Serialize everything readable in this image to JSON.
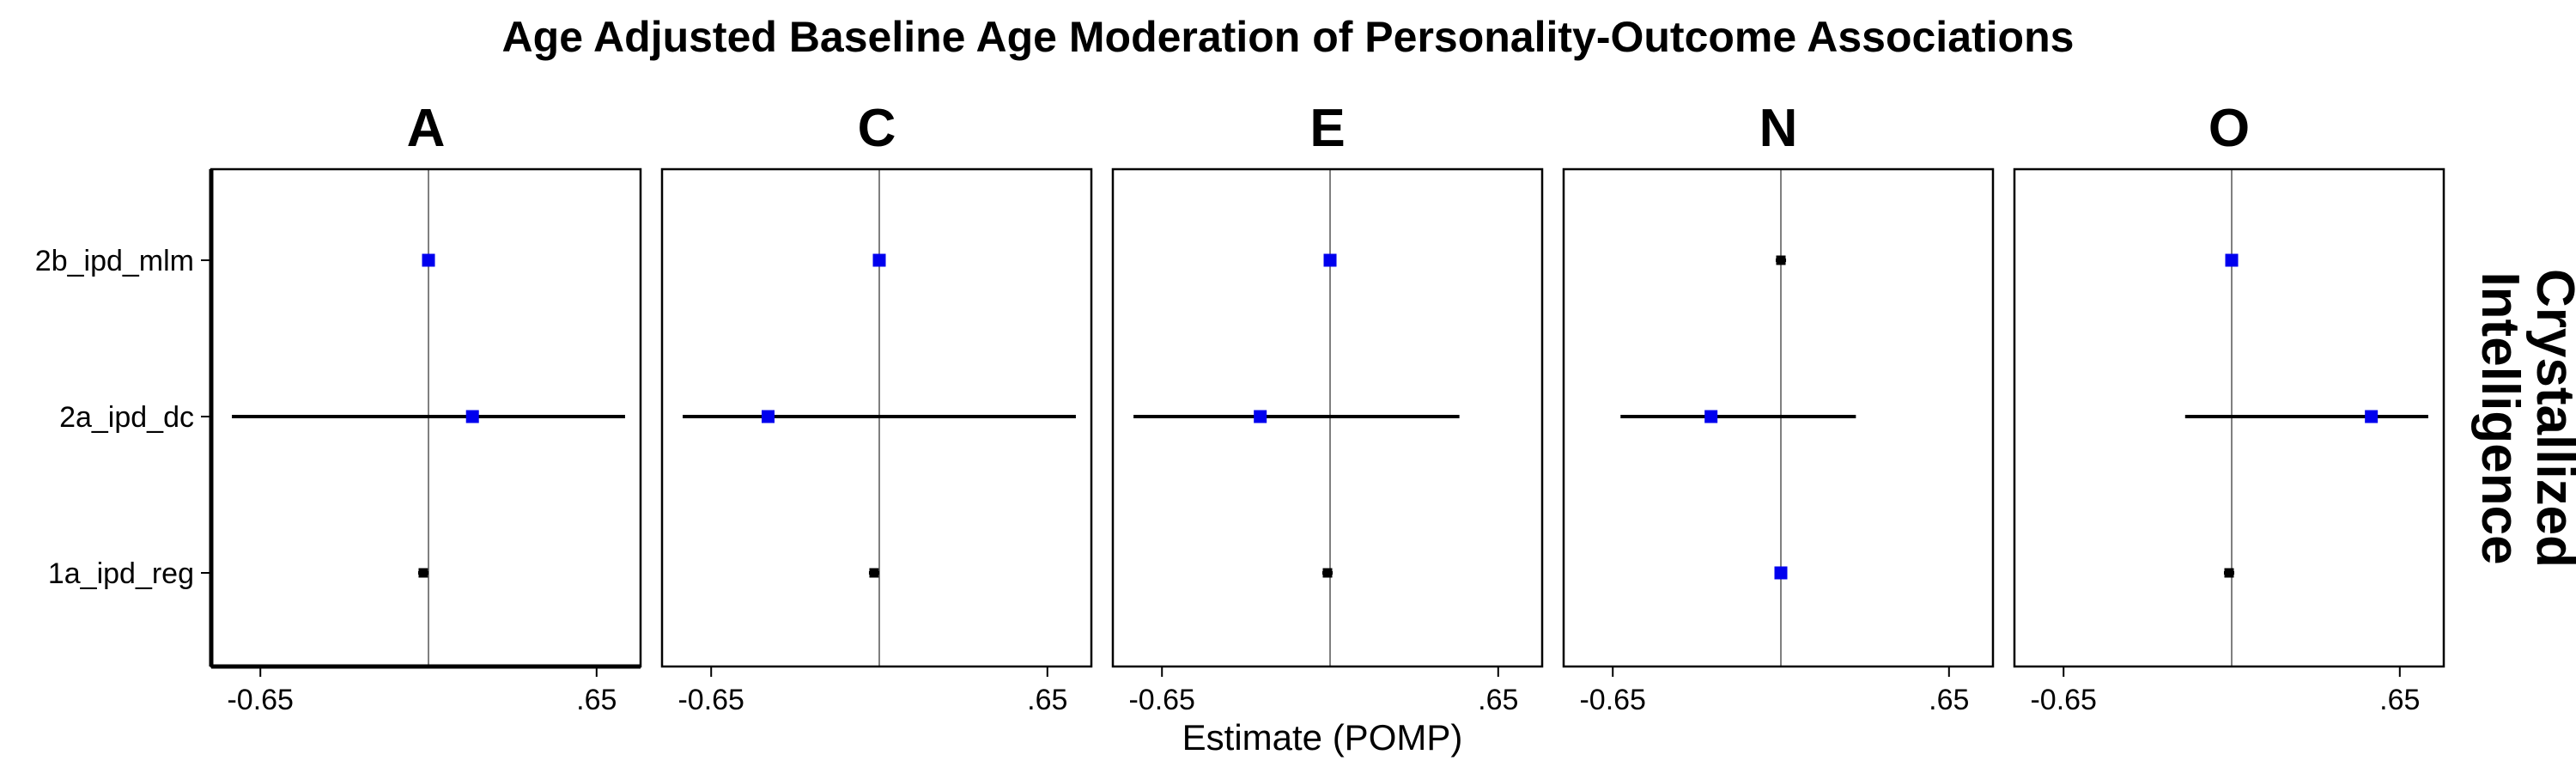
{
  "chart_data": {
    "type": "forest",
    "title": "Age Adjusted Baseline Age Moderation of Personality-Outcome Associations",
    "xlabel": "Estimate (POMP)",
    "strip_label": "Crystallized\nIntelligence",
    "x_ticks": [
      -0.65,
      0.65
    ],
    "x_tick_labels": [
      "-0.65",
      ".65"
    ],
    "xlim": [
      -0.84,
      0.82
    ],
    "zero_line": 0,
    "y_categories": [
      "2b_ipd_mlm",
      "2a_ipd_dc",
      "1a_ipd_reg"
    ],
    "colors": {
      "significant": "#0000ee",
      "nonsignificant": "#000000"
    },
    "panels": [
      {
        "name": "A",
        "points": [
          {
            "model": "2b_ipd_mlm",
            "estimate": 0.0,
            "lower": -0.02,
            "upper": 0.02,
            "significant": true
          },
          {
            "model": "2a_ipd_dc",
            "estimate": 0.17,
            "lower": -0.76,
            "upper": 0.76,
            "significant": true
          },
          {
            "model": "1a_ipd_reg",
            "estimate": -0.02,
            "lower": -0.04,
            "upper": 0.0,
            "significant": false
          }
        ]
      },
      {
        "name": "C",
        "points": [
          {
            "model": "2b_ipd_mlm",
            "estimate": 0.0,
            "lower": -0.02,
            "upper": 0.02,
            "significant": true
          },
          {
            "model": "2a_ipd_dc",
            "estimate": -0.43,
            "lower": -0.76,
            "upper": 0.76,
            "significant": true
          },
          {
            "model": "1a_ipd_reg",
            "estimate": -0.02,
            "lower": -0.04,
            "upper": 0.0,
            "significant": false
          }
        ]
      },
      {
        "name": "E",
        "points": [
          {
            "model": "2b_ipd_mlm",
            "estimate": 0.0,
            "lower": -0.02,
            "upper": 0.02,
            "significant": true
          },
          {
            "model": "2a_ipd_dc",
            "estimate": -0.27,
            "lower": -0.76,
            "upper": 0.5,
            "significant": true
          },
          {
            "model": "1a_ipd_reg",
            "estimate": -0.01,
            "lower": -0.03,
            "upper": 0.01,
            "significant": false
          }
        ]
      },
      {
        "name": "N",
        "points": [
          {
            "model": "2b_ipd_mlm",
            "estimate": 0.0,
            "lower": -0.02,
            "upper": 0.02,
            "significant": false
          },
          {
            "model": "2a_ipd_dc",
            "estimate": -0.27,
            "lower": -0.62,
            "upper": 0.29,
            "significant": true
          },
          {
            "model": "1a_ipd_reg",
            "estimate": 0.0,
            "lower": -0.02,
            "upper": 0.02,
            "significant": true
          }
        ]
      },
      {
        "name": "O",
        "points": [
          {
            "model": "2b_ipd_mlm",
            "estimate": 0.0,
            "lower": -0.02,
            "upper": 0.02,
            "significant": true
          },
          {
            "model": "2a_ipd_dc",
            "estimate": 0.54,
            "lower": -0.18,
            "upper": 0.76,
            "significant": true
          },
          {
            "model": "1a_ipd_reg",
            "estimate": -0.01,
            "lower": -0.03,
            "upper": 0.01,
            "significant": false
          }
        ]
      }
    ]
  }
}
